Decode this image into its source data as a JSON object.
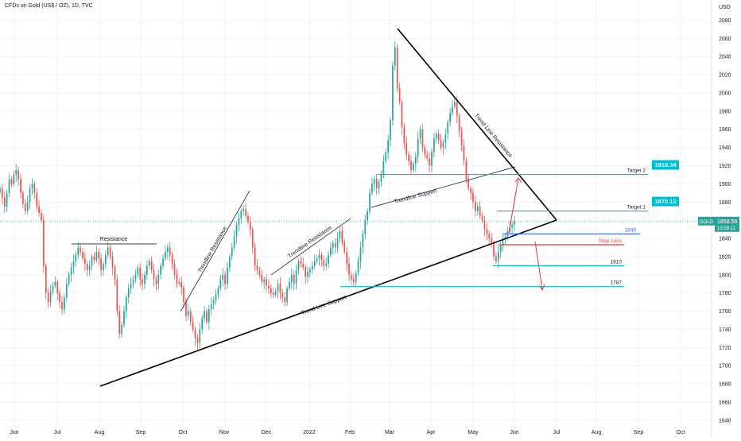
{
  "header": {
    "symbol_line": "CFDs on Gold (US$ / OZ), 1D, TVC"
  },
  "axis": {
    "currency": "USD"
  },
  "colors": {
    "up": "#26a69a",
    "down": "#ef5350",
    "trend": "#000000",
    "cyan": "#00bcd4",
    "blue": "#2962ff",
    "red": "#e53935",
    "grid": "#f0f3fa",
    "current": "#26a69a"
  },
  "chart_data": {
    "type": "candlestick",
    "x_ticks": [
      "Jun",
      "Jul",
      "Aug",
      "Sep",
      "Oct",
      "Nov",
      "Dec",
      "2022",
      "Feb",
      "Mar",
      "Apr",
      "May",
      "Jun",
      "Jul",
      "Aug",
      "Sep",
      "Oct"
    ],
    "y_ticks": [
      2080,
      2060,
      2040,
      2020,
      2000,
      1980,
      1960,
      1940,
      1920,
      1900,
      1880,
      1860,
      1840,
      1820,
      1800,
      1780,
      1760,
      1740,
      1720,
      1700,
      1680,
      1660,
      1640
    ],
    "ylim": [
      1632,
      2090
    ],
    "current_price": {
      "symbol": "GOLD",
      "value": "1858.59",
      "countdown": "13:59:11",
      "numeric": 1858.59
    },
    "levels": [
      {
        "name": "Target 2",
        "value": 1910.34,
        "label": "Target 2",
        "badge": "1910.34"
      },
      {
        "name": "Target 1",
        "value": 1870.12,
        "label": "Target 1",
        "badge": "1870.12"
      },
      {
        "name": "1845",
        "value": 1845,
        "label": "1845"
      },
      {
        "name": "Stop Loss",
        "value": 1833,
        "label": "Stop Loss"
      },
      {
        "name": "1810",
        "value": 1810,
        "label": "1810"
      },
      {
        "name": "1787",
        "value": 1787,
        "label": "1787"
      }
    ],
    "annotations": {
      "resistance": "Resistance",
      "trendline_resistance_1": "Trendline Resistance",
      "trendline_resistance_2": "Trendline Resistance",
      "trendline_support": "Trendline Support",
      "trend_line_support": "Trend Line Support",
      "trend_line_resistance": "Trend Line Resistance"
    },
    "closes": [
      1895,
      1885,
      1875,
      1890,
      1905,
      1900,
      1910,
      1915,
      1905,
      1890,
      1878,
      1870,
      1880,
      1895,
      1900,
      1890,
      1875,
      1868,
      1860,
      1810,
      1780,
      1770,
      1782,
      1788,
      1792,
      1780,
      1770,
      1762,
      1775,
      1790,
      1800,
      1808,
      1815,
      1822,
      1830,
      1825,
      1818,
      1812,
      1805,
      1810,
      1820,
      1816,
      1825,
      1818,
      1805,
      1812,
      1822,
      1830,
      1820,
      1808,
      1795,
      1760,
      1735,
      1745,
      1760,
      1775,
      1785,
      1790,
      1795,
      1800,
      1808,
      1795,
      1790,
      1800,
      1810,
      1815,
      1805,
      1795,
      1790,
      1800,
      1810,
      1818,
      1825,
      1830,
      1822,
      1812,
      1800,
      1790,
      1792,
      1786,
      1770,
      1755,
      1760,
      1748,
      1740,
      1730,
      1725,
      1740,
      1752,
      1760,
      1748,
      1762,
      1768,
      1772,
      1778,
      1785,
      1795,
      1800,
      1790,
      1808,
      1820,
      1830,
      1842,
      1855,
      1862,
      1870,
      1872,
      1865,
      1858,
      1850,
      1830,
      1810,
      1805,
      1800,
      1792,
      1795,
      1788,
      1785,
      1780,
      1778,
      1782,
      1790,
      1780,
      1775,
      1770,
      1785,
      1792,
      1800,
      1790,
      1805,
      1815,
      1812,
      1808,
      1798,
      1803,
      1806,
      1810,
      1815,
      1818,
      1822,
      1816,
      1810,
      1812,
      1822,
      1830,
      1835,
      1830,
      1840,
      1848,
      1836,
      1825,
      1812,
      1800,
      1795,
      1792,
      1802,
      1815,
      1830,
      1845,
      1860,
      1870,
      1890,
      1900,
      1905,
      1895,
      1902,
      1910,
      1925,
      1935,
      1948,
      1970,
      2030,
      2050,
      2005,
      1990,
      1962,
      1945,
      1932,
      1925,
      1915,
      1922,
      1930,
      1950,
      1960,
      1940,
      1932,
      1928,
      1920,
      1935,
      1950,
      1955,
      1948,
      1940,
      1945,
      1955,
      1968,
      1978,
      1985,
      1990,
      1975,
      1958,
      1942,
      1925,
      1905,
      1895,
      1890,
      1880,
      1870,
      1875,
      1865,
      1860,
      1850,
      1845,
      1840,
      1835,
      1820,
      1815,
      1825,
      1832,
      1838,
      1842,
      1848,
      1852,
      1855,
      1858.59
    ]
  }
}
